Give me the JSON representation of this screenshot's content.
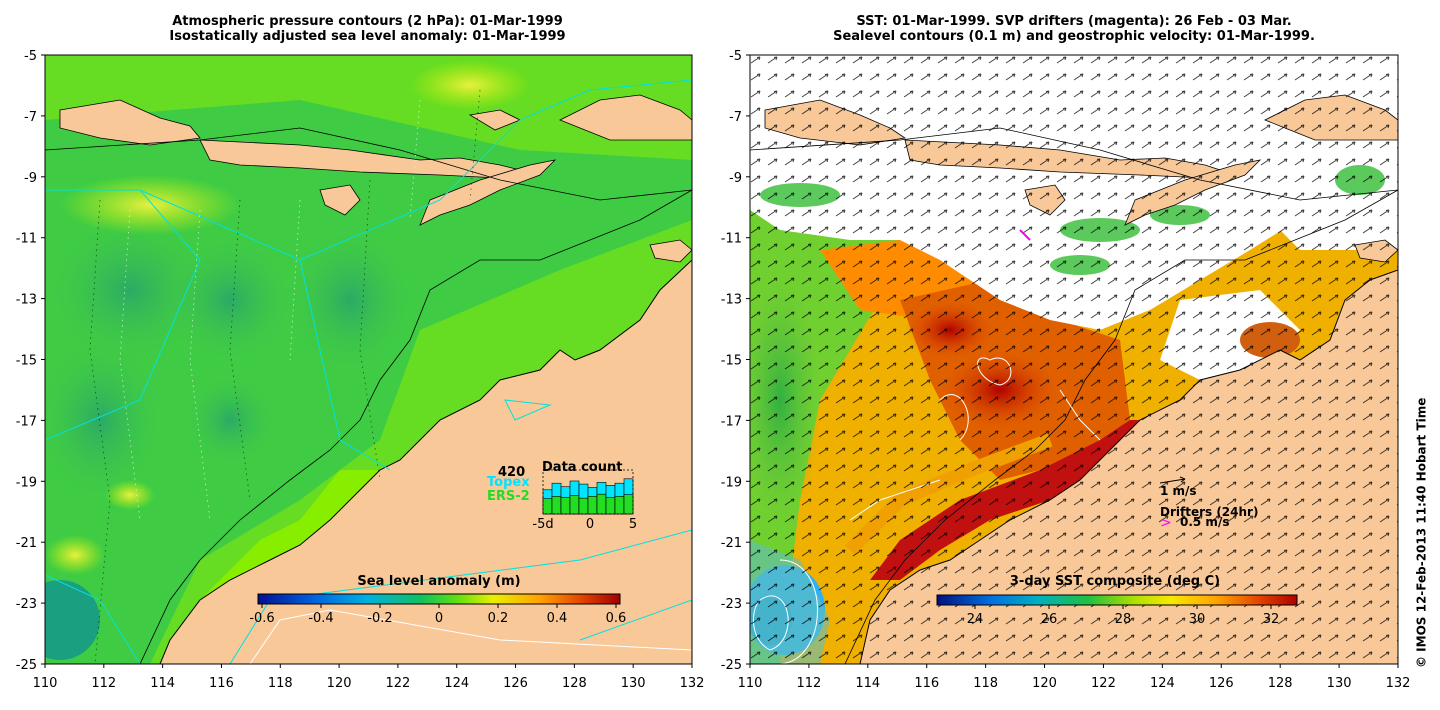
{
  "left_panel": {
    "title_line1": "Atmospheric pressure contours (2 hPa): 01-Mar-1999",
    "title_line2": "Isostatically adjusted sea level anomaly: 01-Mar-1999",
    "colorbar_title": "Sea level anomaly (m)",
    "colorbar_ticks": [
      "-0.6",
      "-0.4",
      "-0.2",
      "0",
      "0.2",
      "0.4",
      "0.6"
    ],
    "data_count": {
      "title": "Data count",
      "max_label": "420",
      "series1": "Topex",
      "series2": "ERS-2",
      "x_ticks": [
        "-5d",
        "0",
        "5"
      ],
      "topex_values": [
        0.55,
        0.7,
        0.62,
        0.75,
        0.68,
        0.6,
        0.72,
        0.65,
        0.7,
        0.8
      ],
      "ers2_values": [
        0.35,
        0.4,
        0.38,
        0.42,
        0.36,
        0.4,
        0.45,
        0.38,
        0.4,
        0.44
      ],
      "topex_color": "#00e5ff",
      "ers2_color": "#22dd22"
    }
  },
  "right_panel": {
    "title_line1": "SST: 01-Mar-1999. SVP drifters (magenta): 26 Feb - 03 Mar.",
    "title_line2": "Sealevel contours (0.1 m) and geostrophic velocity: 01-Mar-1999.",
    "colorbar_title": "3-day SST composite (deg C)",
    "colorbar_ticks": [
      "24",
      "26",
      "28",
      "30",
      "32"
    ],
    "velocity_scale_label": "1 m/s",
    "drifters_label": "Drifters (24hr)",
    "drifters_scale_label": "0.5 m/s",
    "drifter_color": "#ff00ff"
  },
  "axes": {
    "y_ticks": [
      "-5",
      "-7",
      "-9",
      "-11",
      "-13",
      "-15",
      "-17",
      "-19",
      "-21",
      "-23",
      "-25"
    ],
    "x_ticks": [
      "110",
      "112",
      "114",
      "116",
      "118",
      "120",
      "122",
      "124",
      "126",
      "128",
      "130",
      "132"
    ],
    "lon_range": [
      110,
      132
    ],
    "lat_range": [
      -25,
      -5
    ]
  },
  "credit": "© IMOS 12-Feb-2013 11:40 Hobart Time",
  "colors": {
    "land": "#f8c898",
    "sea_green": "#80f000",
    "sea_mid": "#33cc44",
    "sst_red": "#c01010",
    "sst_orange": "#ff8800"
  }
}
